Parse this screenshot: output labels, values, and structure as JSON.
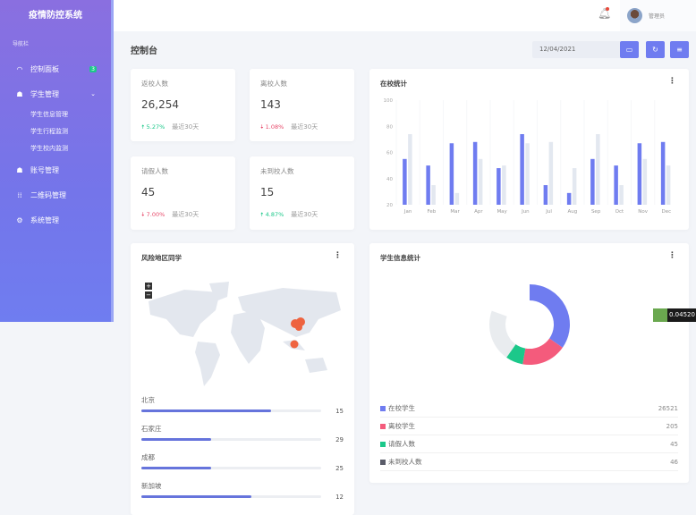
{
  "sidebar": {
    "brand": "疫情防控系统",
    "nav_label": "导航栏",
    "items": [
      {
        "label": "控制面板",
        "icon": "dashboard-icon",
        "badge": "3"
      },
      {
        "label": "学生管理",
        "icon": "users-icon"
      },
      {
        "label": "账号管理",
        "icon": "user-icon"
      },
      {
        "label": "二维码管理",
        "icon": "qrcode-icon"
      },
      {
        "label": "系统管理",
        "icon": "gear-icon"
      }
    ],
    "sub_items": [
      "学生信息管理",
      "学生行程监测",
      "学生校内监测"
    ]
  },
  "header": {
    "user_name": "管理员"
  },
  "toolbar": {
    "title": "控制台",
    "date": "12/04/2021"
  },
  "stats": [
    {
      "title": "返校人数",
      "value": "26,254",
      "change": "5.27%",
      "direction": "up",
      "period": "最近30天"
    },
    {
      "title": "离校人数",
      "value": "143",
      "change": "1.08%",
      "direction": "down",
      "period": "最近30天"
    },
    {
      "title": "请假人数",
      "value": "45",
      "change": "7.00%",
      "direction": "down",
      "period": "最近30天"
    },
    {
      "title": "未到校人数",
      "value": "15",
      "change": "4.87%",
      "direction": "up",
      "period": "最近30天"
    }
  ],
  "colors": {
    "accent": "#6f7cf0",
    "up": "#1cc88a",
    "down": "#e74a6b"
  },
  "chart_data": [
    {
      "type": "bar",
      "title": "在校统计",
      "categories": [
        "Jan",
        "Feb",
        "Mar",
        "Apr",
        "May",
        "Jun",
        "Jul",
        "Aug",
        "Sep",
        "Oct",
        "Nov",
        "Dec"
      ],
      "series": [
        {
          "values": [
            55,
            50,
            67,
            68,
            48,
            74,
            35,
            29,
            55,
            50,
            67,
            68
          ],
          "color": "#6f7cf0"
        },
        {
          "values": [
            74,
            35,
            29,
            55,
            50,
            67,
            68,
            48,
            74,
            35,
            55,
            50
          ],
          "color": "#e3e8f0"
        }
      ],
      "ylim": [
        20,
        100
      ],
      "yticks": [
        "20",
        "40",
        "60",
        "80",
        "100"
      ],
      "grid": true
    },
    {
      "type": "pie",
      "title": "学生信息统计",
      "labels": [
        "在校学生",
        "离校学生",
        "请假人数",
        "未到校人数"
      ],
      "values": [
        26521,
        205,
        45,
        46
      ],
      "colors": [
        "#6f7cf0",
        "#f45b7c",
        "#1cc88a",
        "#5a5c69"
      ]
    }
  ],
  "risk": {
    "title": "风险地区同学",
    "zoom_in": "+",
    "zoom_out": "−",
    "locations": [
      {
        "name": "北京",
        "value": "15",
        "fraction": 0.72
      },
      {
        "name": "石家庄",
        "value": "29",
        "fraction": 0.39
      },
      {
        "name": "成都",
        "value": "25",
        "fraction": 0.39
      },
      {
        "name": "新加坡",
        "value": "12",
        "fraction": 0.61
      }
    ]
  },
  "overlay": {
    "value": "0.04520"
  }
}
